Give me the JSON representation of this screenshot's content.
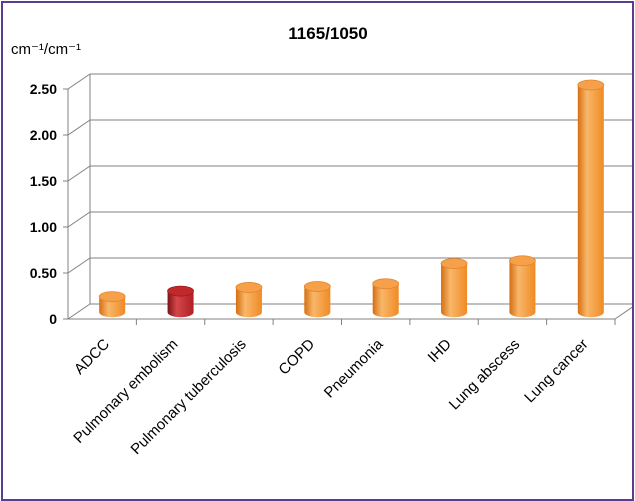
{
  "chart_data": {
    "type": "bar",
    "title": "1165/1050",
    "ylabel": "cm⁻¹/cm⁻¹",
    "categories": [
      "ADCC",
      "Pulmonary embolism",
      "Pulmonary tuberculosis",
      "COPD",
      "Pneumonia",
      "IHD",
      "Lung abscess",
      "Lung cancer"
    ],
    "values": [
      0.17,
      0.23,
      0.27,
      0.28,
      0.31,
      0.53,
      0.56,
      2.47
    ],
    "yticks": [
      "0",
      "0.50",
      "1.00",
      "1.50",
      "2.00",
      "2.50"
    ],
    "ylim": [
      0,
      2.5
    ],
    "grid": true,
    "legend": "none",
    "bar_color": "#f08a24",
    "highlight_color": "#b01e23",
    "highlight_category": "Pulmonary embolism",
    "plot_border_color": "#808080"
  }
}
